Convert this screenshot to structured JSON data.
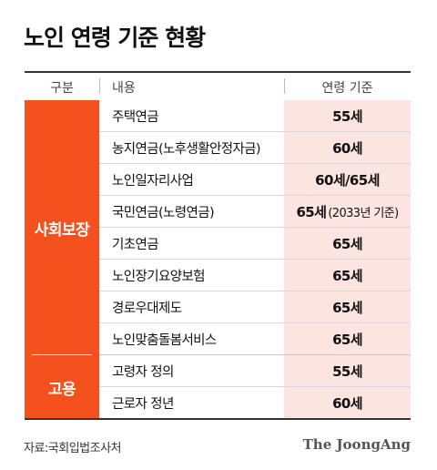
{
  "title": "노인 연령 기준 현황",
  "header": {
    "category": "구분",
    "content": "내용",
    "criteria": "연령 기준"
  },
  "chart_data": {
    "type": "table",
    "columns": [
      "구분",
      "내용",
      "연령 기준"
    ],
    "groups": [
      {
        "label": "사회보장",
        "rows": [
          {
            "content": "주택연금",
            "criteria": "55세",
            "note": ""
          },
          {
            "content": "농지연금(노후생활안정자금)",
            "criteria": "60세",
            "note": ""
          },
          {
            "content": "노인일자리사업",
            "criteria": "60세/65세",
            "note": ""
          },
          {
            "content": "국민연금(노령연금)",
            "criteria": "65세",
            "note": "(2033년 기준)"
          },
          {
            "content": "기초연금",
            "criteria": "65세",
            "note": ""
          },
          {
            "content": "노인장기요양보험",
            "criteria": "65세",
            "note": ""
          },
          {
            "content": "경로우대제도",
            "criteria": "65세",
            "note": ""
          },
          {
            "content": "노인맞춤돌봄서비스",
            "criteria": "65세",
            "note": ""
          }
        ]
      },
      {
        "label": "고용",
        "rows": [
          {
            "content": "고령자 정의",
            "criteria": "55세",
            "note": ""
          },
          {
            "content": "근로자 정년",
            "criteria": "60세",
            "note": ""
          }
        ]
      }
    ]
  },
  "source": "자료:국회입법조사처",
  "logo": "The JoongAng",
  "colors": {
    "group_bg": "#f4511e",
    "criteria_bg": "#fce4e1"
  }
}
